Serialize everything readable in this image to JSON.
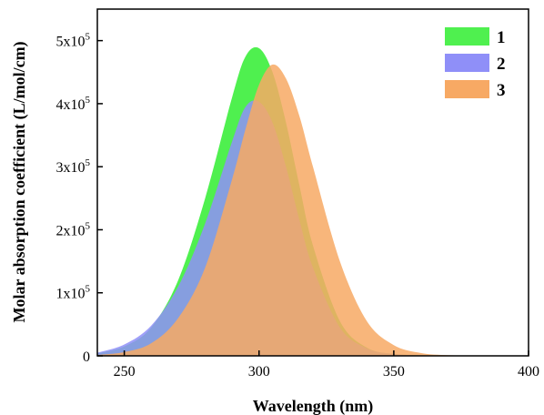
{
  "chart_data": {
    "type": "area",
    "title": "",
    "xlabel": "Wavelength (nm)",
    "ylabel": "Molar absorption coefficient (L/mol/cm)",
    "xlim": [
      240,
      400
    ],
    "ylim": [
      0,
      550000
    ],
    "x_ticks": [
      250,
      300,
      350,
      400
    ],
    "y_ticks": [
      {
        "value": 0,
        "base": "0",
        "exp": ""
      },
      {
        "value": 100000,
        "base": "1x10",
        "exp": "5"
      },
      {
        "value": 200000,
        "base": "2x10",
        "exp": "5"
      },
      {
        "value": 300000,
        "base": "3x10",
        "exp": "5"
      },
      {
        "value": 400000,
        "base": "4x10",
        "exp": "5"
      },
      {
        "value": 500000,
        "base": "5x10",
        "exp": "5"
      }
    ],
    "grid": false,
    "legend_position": "top-right",
    "x": [
      240,
      250,
      260,
      270,
      280,
      290,
      295,
      300,
      305,
      310,
      315,
      320,
      330,
      340,
      350,
      360,
      370,
      380,
      390,
      400
    ],
    "series": [
      {
        "name": "1",
        "color": "#4ff04f",
        "values": [
          4000,
          15000,
          45000,
          120000,
          250000,
          410000,
          475000,
          488000,
          450000,
          370000,
          270000,
          175000,
          55000,
          13000,
          3000,
          800,
          200,
          50,
          0,
          0
        ]
      },
      {
        "name": "2",
        "color": "#8f8ff8",
        "values": [
          5000,
          18000,
          48000,
          110000,
          210000,
          340000,
          395000,
          403000,
          370000,
          300000,
          215000,
          140000,
          45000,
          12000,
          3000,
          800,
          200,
          50,
          0,
          0
        ]
      },
      {
        "name": "3",
        "color": "#f7a964",
        "values": [
          1500,
          6000,
          20000,
          60000,
          140000,
          280000,
          360000,
          430000,
          462000,
          440000,
          380000,
          300000,
          150000,
          55000,
          17000,
          4500,
          1000,
          200,
          50,
          0
        ]
      }
    ]
  }
}
